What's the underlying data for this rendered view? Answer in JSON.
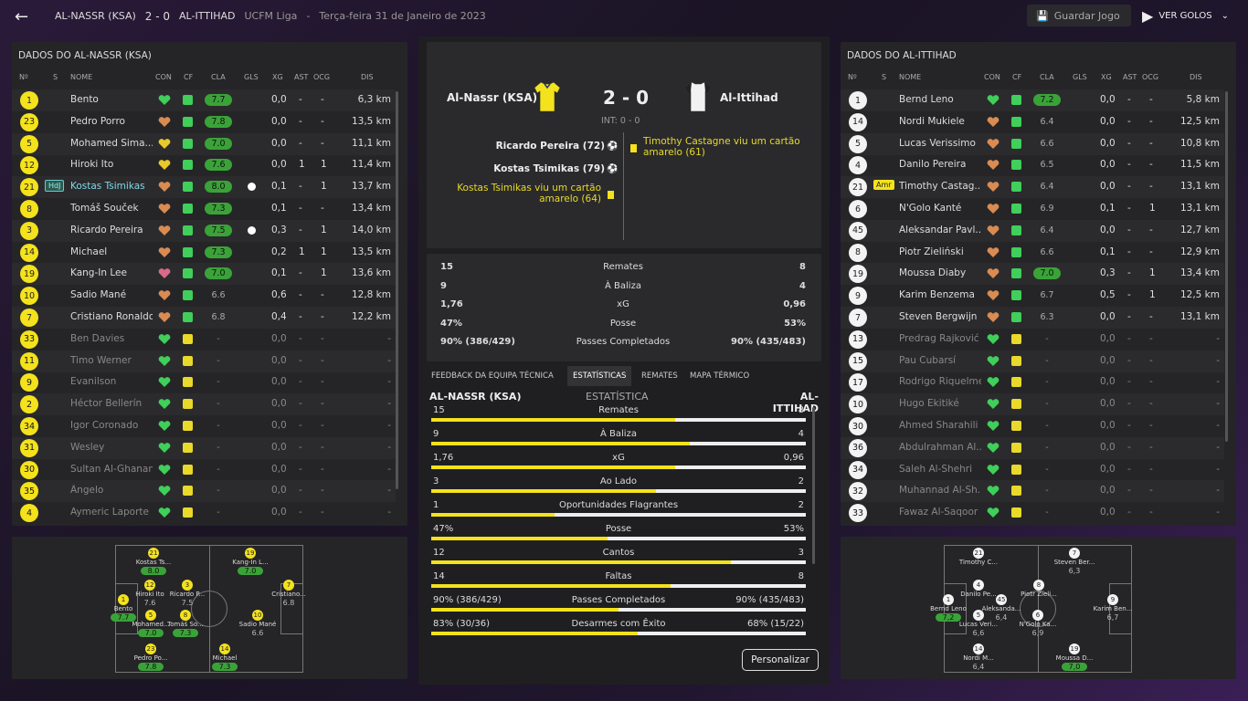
{
  "topbar": {
    "home": "AL-NASSR (KSA)",
    "score": "2 - 0",
    "away": "AL-ITTIHAD",
    "competition": "UCFM Liga",
    "sep": "-",
    "date": "Terça-feira 31 de Janeiro de 2023",
    "save": "Guardar Jogo",
    "goals": "VER GOLOS"
  },
  "headers": {
    "no": "Nº",
    "s": "S",
    "name": "NOME",
    "con": "CON",
    "cf": "CF",
    "cla": "CLA",
    "gls": "GLS",
    "xg": "XG",
    "ast": "AST",
    "ocg": "OCG",
    "dis": "DIS"
  },
  "left": {
    "title": "DADOS DO AL-NASSR (KSA)",
    "players": [
      {
        "no": "1",
        "name": "Bento",
        "cla": "7.7",
        "gls": "",
        "xg": "0,0",
        "ast": "-",
        "ocg": "-",
        "dis": "6,3 km",
        "sub": false
      },
      {
        "no": "23",
        "name": "Pedro Porro",
        "cla": "7.8",
        "gls": "",
        "xg": "0,0",
        "ast": "-",
        "ocg": "-",
        "dis": "13,5 km",
        "sub": false
      },
      {
        "no": "5",
        "name": "Mohamed Sima...",
        "cla": "7.0",
        "gls": "",
        "xg": "0,0",
        "ast": "-",
        "ocg": "-",
        "dis": "11,1 km",
        "sub": false
      },
      {
        "no": "12",
        "name": "Hiroki Ito",
        "cla": "7.6",
        "gls": "",
        "xg": "0,0",
        "ast": "1",
        "ocg": "1",
        "dis": "11,4 km",
        "sub": false
      },
      {
        "no": "21",
        "name": "Kostas Tsimikas",
        "badge": "HdJ",
        "cla": "8.0",
        "gls": "ball",
        "xg": "0,1",
        "ast": "-",
        "ocg": "1",
        "dis": "13,7 km",
        "sub": false,
        "hl": true
      },
      {
        "no": "8",
        "name": "Tomáš Souček",
        "cla": "7.3",
        "gls": "",
        "xg": "0,1",
        "ast": "-",
        "ocg": "-",
        "dis": "13,4 km",
        "sub": false
      },
      {
        "no": "3",
        "name": "Ricardo Pereira",
        "cla": "7.5",
        "gls": "ball",
        "xg": "0,3",
        "ast": "-",
        "ocg": "1",
        "dis": "14,0 km",
        "sub": false
      },
      {
        "no": "14",
        "name": "Michael",
        "cla": "7.3",
        "gls": "",
        "xg": "0,2",
        "ast": "1",
        "ocg": "1",
        "dis": "13,5 km",
        "sub": false
      },
      {
        "no": "19",
        "name": "Kang-In Lee",
        "cla": "7.0",
        "gls": "",
        "xg": "0,1",
        "ast": "-",
        "ocg": "1",
        "dis": "13,6 km",
        "sub": false
      },
      {
        "no": "10",
        "name": "Sadio Mané",
        "cla": "6.6",
        "gls": "",
        "xg": "0,6",
        "ast": "-",
        "ocg": "-",
        "dis": "12,8 km",
        "sub": false
      },
      {
        "no": "7",
        "name": "Cristiano Ronaldo",
        "cla": "6.8",
        "gls": "",
        "xg": "0,4",
        "ast": "-",
        "ocg": "-",
        "dis": "12,2 km",
        "sub": false
      },
      {
        "no": "33",
        "name": "Ben Davies",
        "cla": "-",
        "gls": "",
        "xg": "0,0",
        "ast": "-",
        "ocg": "-",
        "dis": "-",
        "sub": true
      },
      {
        "no": "11",
        "name": "Timo Werner",
        "cla": "-",
        "gls": "",
        "xg": "0,0",
        "ast": "-",
        "ocg": "-",
        "dis": "-",
        "sub": true
      },
      {
        "no": "9",
        "name": "Evanilson",
        "cla": "-",
        "gls": "",
        "xg": "0,0",
        "ast": "-",
        "ocg": "-",
        "dis": "-",
        "sub": true
      },
      {
        "no": "2",
        "name": "Héctor Bellerín",
        "cla": "-",
        "gls": "",
        "xg": "0,0",
        "ast": "-",
        "ocg": "-",
        "dis": "-",
        "sub": true
      },
      {
        "no": "34",
        "name": "Igor Coronado",
        "cla": "-",
        "gls": "",
        "xg": "0,0",
        "ast": "-",
        "ocg": "-",
        "dis": "-",
        "sub": true
      },
      {
        "no": "31",
        "name": "Wesley",
        "cla": "-",
        "gls": "",
        "xg": "0,0",
        "ast": "-",
        "ocg": "-",
        "dis": "-",
        "sub": true
      },
      {
        "no": "30",
        "name": "Sultan Al-Ghanam",
        "cla": "-",
        "gls": "",
        "xg": "0,0",
        "ast": "-",
        "ocg": "-",
        "dis": "-",
        "sub": true
      },
      {
        "no": "35",
        "name": "Ângelo",
        "cla": "-",
        "gls": "",
        "xg": "0,0",
        "ast": "-",
        "ocg": "-",
        "dis": "-",
        "sub": true
      },
      {
        "no": "4",
        "name": "Aymeric Laporte",
        "cla": "-",
        "gls": "",
        "xg": "0,0",
        "ast": "-",
        "ocg": "-",
        "dis": "-",
        "sub": true
      }
    ]
  },
  "right": {
    "title": "DADOS DO AL-ITTIHAD",
    "players": [
      {
        "no": "1",
        "name": "Bernd Leno",
        "cla": "7.2",
        "cg": true,
        "xg": "0,0",
        "ast": "-",
        "ocg": "-",
        "dis": "5,8 km",
        "sub": false
      },
      {
        "no": "14",
        "name": "Nordi Mukiele",
        "cla": "6.4",
        "xg": "0,0",
        "ast": "-",
        "ocg": "-",
        "dis": "12,5 km",
        "sub": false
      },
      {
        "no": "5",
        "name": "Lucas Verissimo",
        "cla": "6.6",
        "xg": "0,0",
        "ast": "-",
        "ocg": "-",
        "dis": "10,8 km",
        "sub": false
      },
      {
        "no": "4",
        "name": "Danilo Pereira",
        "cla": "6.5",
        "xg": "0,0",
        "ast": "-",
        "ocg": "-",
        "dis": "11,5 km",
        "sub": false
      },
      {
        "no": "21",
        "name": "Timothy Castag...",
        "badge": "Amr",
        "cla": "6.4",
        "xg": "0,0",
        "ast": "-",
        "ocg": "-",
        "dis": "13,1 km",
        "sub": false
      },
      {
        "no": "6",
        "name": "N'Golo Kanté",
        "cla": "6.9",
        "xg": "0,1",
        "ast": "-",
        "ocg": "1",
        "dis": "13,1 km",
        "sub": false
      },
      {
        "no": "45",
        "name": "Aleksandar Pavl...",
        "cla": "6.4",
        "xg": "0,0",
        "ast": "-",
        "ocg": "-",
        "dis": "12,7 km",
        "sub": false
      },
      {
        "no": "8",
        "name": "Piotr Zieliński",
        "cla": "6.6",
        "xg": "0,1",
        "ast": "-",
        "ocg": "-",
        "dis": "12,9 km",
        "sub": false
      },
      {
        "no": "19",
        "name": "Moussa Diaby",
        "cla": "7.0",
        "cg": true,
        "xg": "0,3",
        "ast": "-",
        "ocg": "1",
        "dis": "13,4 km",
        "sub": false
      },
      {
        "no": "9",
        "name": "Karim Benzema",
        "cla": "6.7",
        "xg": "0,5",
        "ast": "-",
        "ocg": "1",
        "dis": "12,5 km",
        "sub": false
      },
      {
        "no": "7",
        "name": "Steven Bergwijn",
        "cla": "6.3",
        "xg": "0,0",
        "ast": "-",
        "ocg": "-",
        "dis": "13,1 km",
        "sub": false
      },
      {
        "no": "13",
        "name": "Predrag Rajković",
        "cla": "-",
        "xg": "0,0",
        "ast": "-",
        "ocg": "-",
        "dis": "-",
        "sub": true
      },
      {
        "no": "15",
        "name": "Pau Cubarsí",
        "cla": "-",
        "xg": "0,0",
        "ast": "-",
        "ocg": "-",
        "dis": "-",
        "sub": true
      },
      {
        "no": "17",
        "name": "Rodrigo Riquelme",
        "cla": "-",
        "xg": "0,0",
        "ast": "-",
        "ocg": "-",
        "dis": "-",
        "sub": true
      },
      {
        "no": "10",
        "name": "Hugo Ekitiké",
        "cla": "-",
        "xg": "0,0",
        "ast": "-",
        "ocg": "-",
        "dis": "-",
        "sub": true
      },
      {
        "no": "30",
        "name": "Ahmed Sharahili",
        "cla": "-",
        "xg": "0,0",
        "ast": "-",
        "ocg": "-",
        "dis": "-",
        "sub": true
      },
      {
        "no": "36",
        "name": "Abdulrahman Al...",
        "cla": "-",
        "xg": "0,0",
        "ast": "-",
        "ocg": "-",
        "dis": "-",
        "sub": true
      },
      {
        "no": "34",
        "name": "Saleh Al-Shehri",
        "cla": "-",
        "xg": "0,0",
        "ast": "-",
        "ocg": "-",
        "dis": "-",
        "sub": true
      },
      {
        "no": "32",
        "name": "Muhannad Al-Sh...",
        "cla": "-",
        "xg": "0,0",
        "ast": "-",
        "ocg": "-",
        "dis": "-",
        "sub": true
      },
      {
        "no": "33",
        "name": "Fawaz Al-Saqoor",
        "cla": "-",
        "xg": "0,0",
        "ast": "-",
        "ocg": "-",
        "dis": "-",
        "sub": true
      }
    ]
  },
  "center": {
    "home": "Al-Nassr (KSA)",
    "away": "Al-Ittihad",
    "score": "2 - 0",
    "ht": "INT: 0 - 0",
    "home_events": [
      "Ricardo Pereira (72)",
      "Kostas Tsimikas (79)",
      "Kostas Tsimikas viu um cartão amarelo (64)"
    ],
    "away_events": [
      "Timothy Castagne viu um cartão amarelo (61)"
    ],
    "summary": [
      {
        "h": "15",
        "l": "Remates",
        "a": "8"
      },
      {
        "h": "9",
        "l": "À Baliza",
        "a": "4"
      },
      {
        "h": "1,76",
        "l": "xG",
        "a": "0,96"
      },
      {
        "h": "47%",
        "l": "Posse",
        "a": "53%"
      },
      {
        "h": "90% (386/429)",
        "l": "Passes Completados",
        "a": "90% (435/483)"
      }
    ],
    "tabs": [
      "FEEDBACK DA EQUIPA TÉCNICA",
      "ESTATÍSTICAS",
      "REMATES",
      "MAPA TÉRMICO"
    ],
    "stats_head": {
      "home": "AL-NASSR (KSA)",
      "mid": "ESTATÍSTICA",
      "away": "AL-ITTIHAD"
    },
    "stats": [
      {
        "h": "15",
        "l": "Remates",
        "a": "8",
        "f": 0.65
      },
      {
        "h": "9",
        "l": "À Baliza",
        "a": "4",
        "f": 0.69
      },
      {
        "h": "1,76",
        "l": "xG",
        "a": "0,96",
        "f": 0.65
      },
      {
        "h": "3",
        "l": "Ao Lado",
        "a": "2",
        "f": 0.6
      },
      {
        "h": "1",
        "l": "Oportunidades Flagrantes",
        "a": "2",
        "f": 0.33
      },
      {
        "h": "47%",
        "l": "Posse",
        "a": "53%",
        "f": 0.47
      },
      {
        "h": "12",
        "l": "Cantos",
        "a": "3",
        "f": 0.8
      },
      {
        "h": "14",
        "l": "Faltas",
        "a": "8",
        "f": 0.64
      },
      {
        "h": "90% (386/429)",
        "l": "Passes Completados",
        "a": "90% (435/483)",
        "f": 0.5
      },
      {
        "h": "83% (30/36)",
        "l": "Desarmes com Êxito",
        "a": "68% (15/22)",
        "f": 0.55
      }
    ],
    "customize": "Personalizar"
  },
  "formation_left": [
    {
      "no": "21",
      "name": "Kostas Ts...",
      "r": "8.0"
    },
    {
      "no": "19",
      "name": "Kang-In L...",
      "r": "7.0"
    },
    {
      "no": "12",
      "name": "Hiroki Ito",
      "r": "7.6"
    },
    {
      "no": "3",
      "name": "Ricardo P...",
      "r": "7.5"
    },
    {
      "no": "7",
      "name": "Cristiano...",
      "r": "6.8"
    },
    {
      "no": "1",
      "name": "Bento",
      "r": "7.7"
    },
    {
      "no": "5",
      "name": "Mohamed...",
      "r": "7.0"
    },
    {
      "no": "8",
      "name": "Tomáš So...",
      "r": "7.3"
    },
    {
      "no": "10",
      "name": "Sadio Mané",
      "r": "6.6"
    },
    {
      "no": "23",
      "name": "Pedro Po...",
      "r": "7.8"
    },
    {
      "no": "14",
      "name": "Michael",
      "r": "7.3"
    }
  ],
  "formation_right": [
    {
      "no": "21",
      "name": "Timothy C...",
      "r": ""
    },
    {
      "no": "7",
      "name": "Steven Ber...",
      "r": "6,3"
    },
    {
      "no": "4",
      "name": "Danilo Pe...",
      "r": ""
    },
    {
      "no": "8",
      "name": "Piotr Zieli...",
      "r": ""
    },
    {
      "no": "1",
      "name": "Bernd Leno",
      "r": "7,2"
    },
    {
      "no": "45",
      "name": "Aleksanda...",
      "r": "6,4"
    },
    {
      "no": "5",
      "name": "Lucas Veri...",
      "r": "6,6"
    },
    {
      "no": "6",
      "name": "N'Golo Ka...",
      "r": "6,9"
    },
    {
      "no": "9",
      "name": "Karim Ben...",
      "r": "6,7"
    },
    {
      "no": "14",
      "name": "Nordi M...",
      "r": "6,4"
    },
    {
      "no": "19",
      "name": "Moussa D...",
      "r": "7,0"
    }
  ],
  "colors": {
    "accent": "#f4e21c",
    "green": "#3aa338",
    "panel": "#252527"
  }
}
